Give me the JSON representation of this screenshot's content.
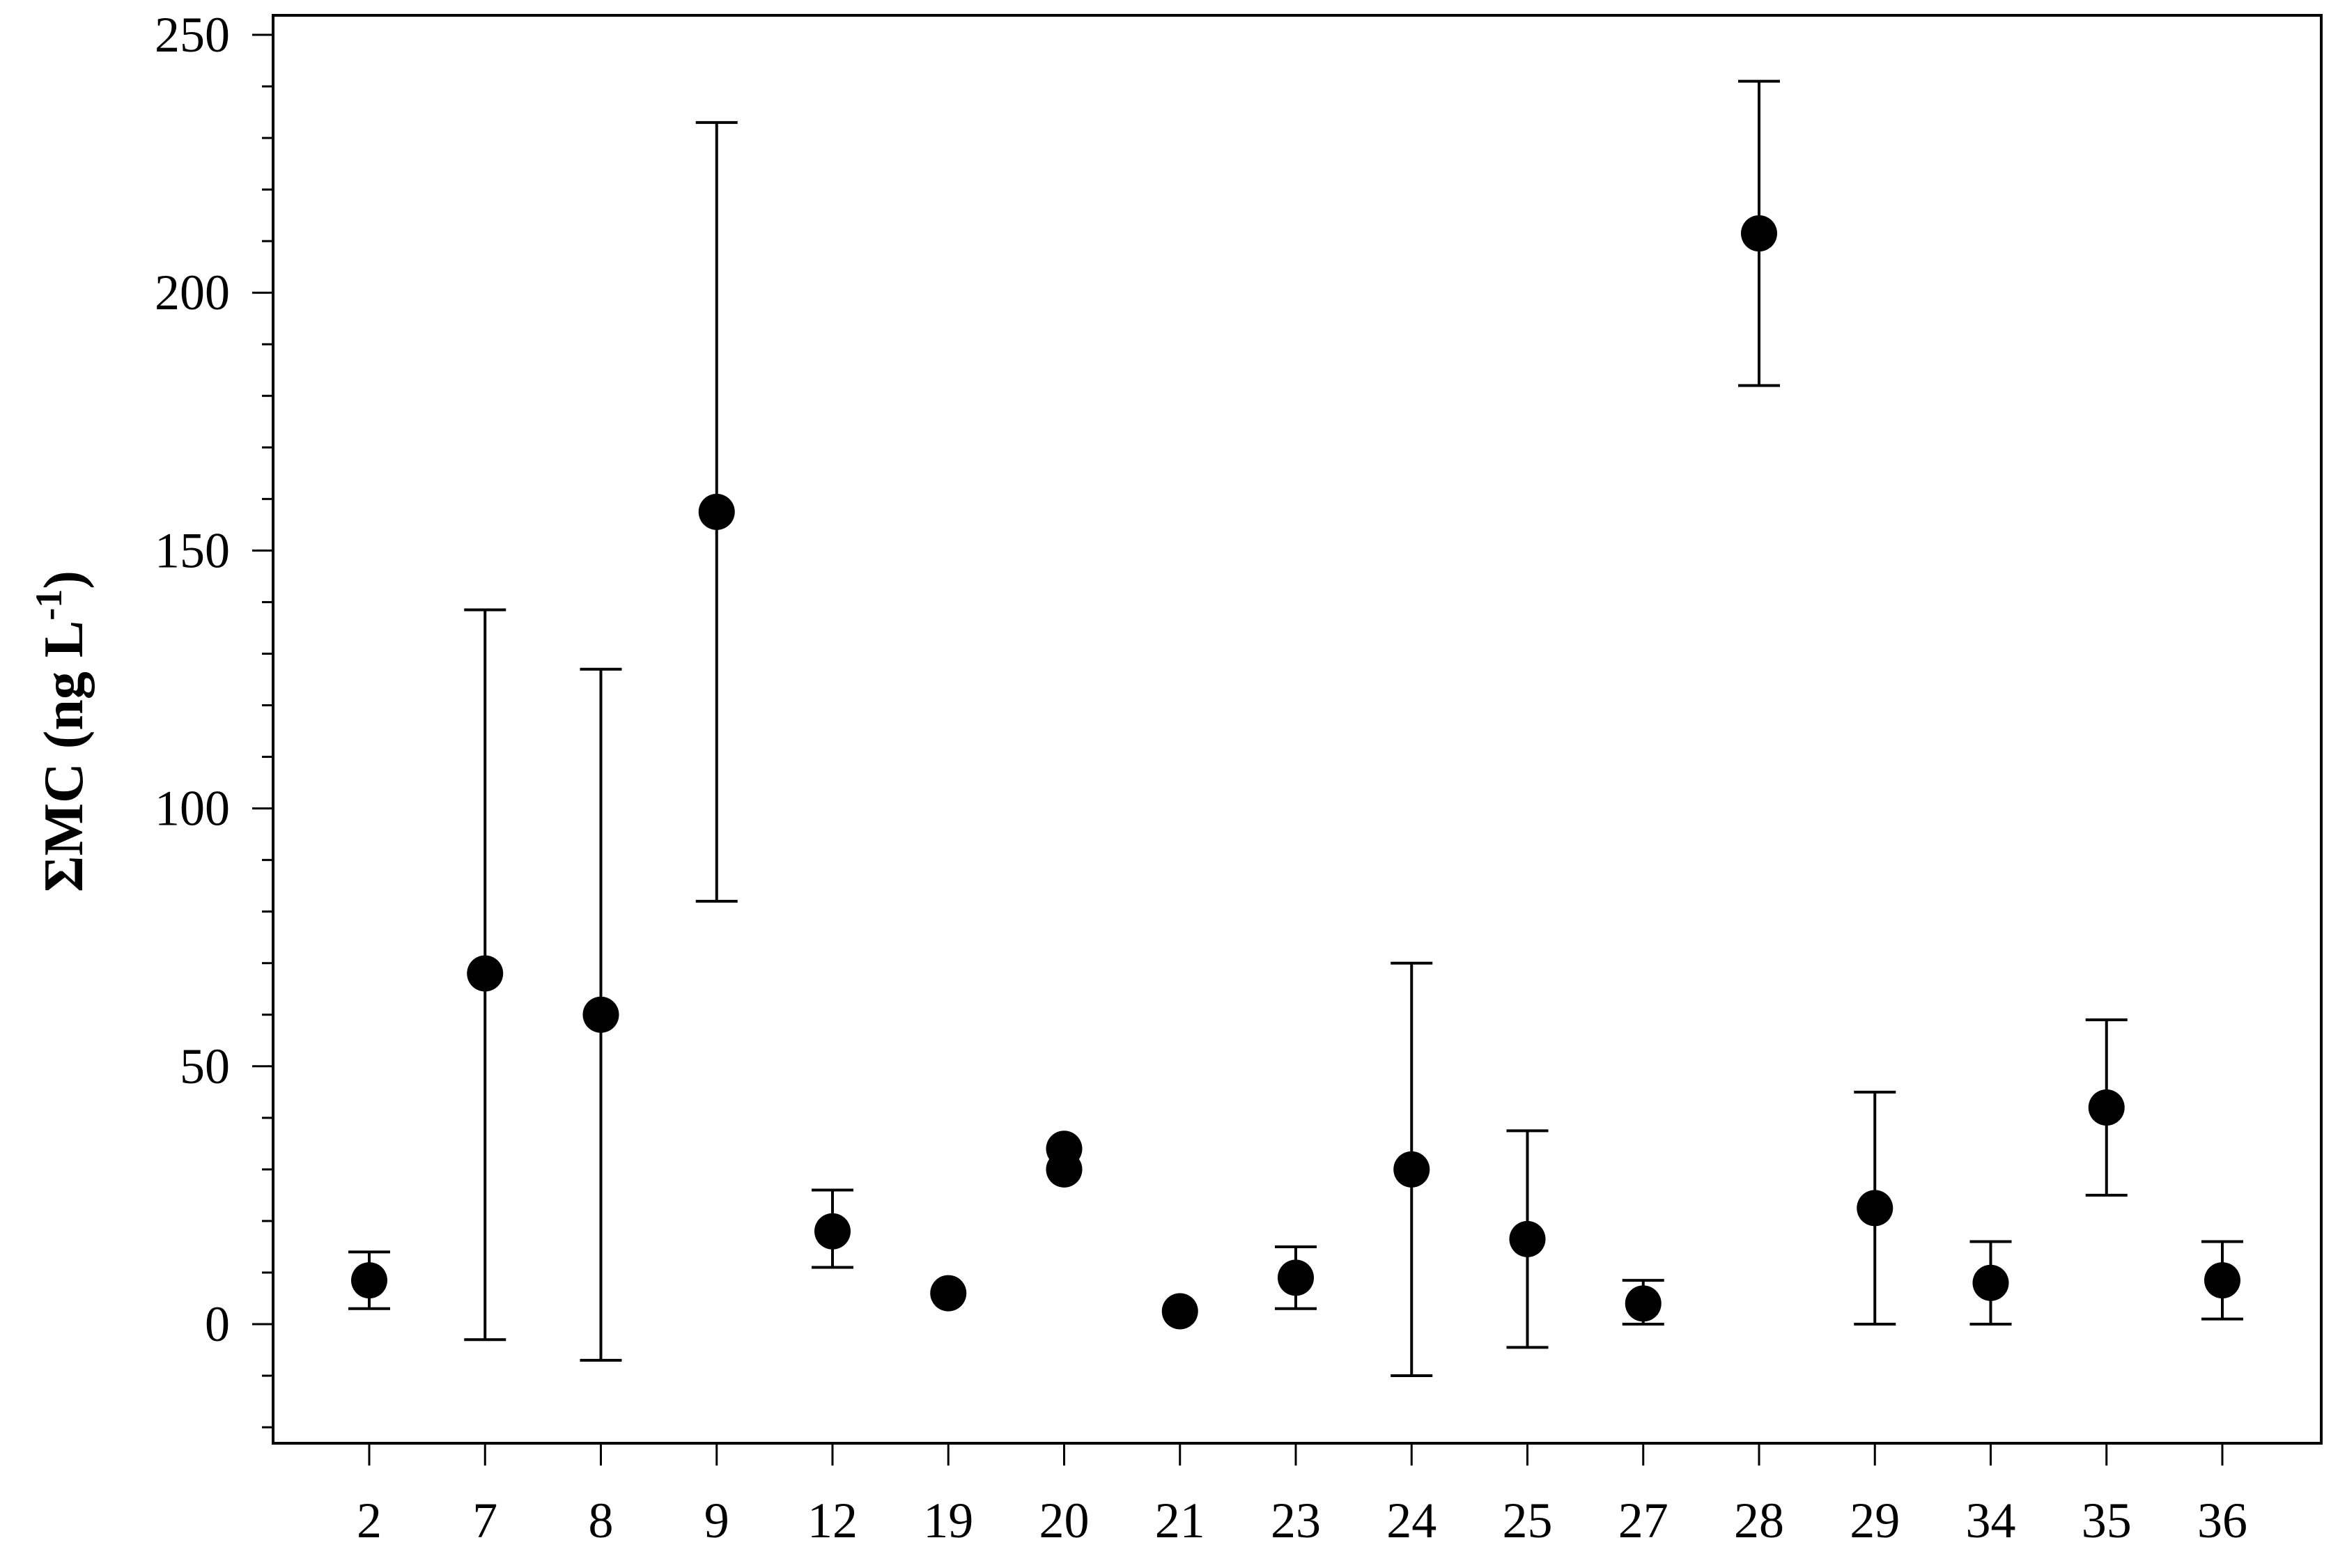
{
  "chart_data": {
    "type": "scatter",
    "title": "",
    "xlabel": "",
    "ylabel": "ΣMC (ng L",
    "ylabel_sup": "-1",
    "ylabel_close": ")",
    "ylim": [
      -20,
      250
    ],
    "yticks": [
      0,
      50,
      100,
      150,
      200,
      250
    ],
    "yminor_step": 10,
    "grid": false,
    "legend": "none",
    "marker_color": "#000000",
    "categories": [
      "2",
      "7",
      "8",
      "9",
      "12",
      "19",
      "20",
      "21",
      "23",
      "24",
      "25",
      "27",
      "28",
      "29",
      "34",
      "35",
      "36"
    ],
    "points": [
      {
        "x": "2",
        "y": 8.5,
        "err_low": 3,
        "err_high": 14
      },
      {
        "x": "7",
        "y": 68,
        "err_low": -3,
        "err_high": 138.5
      },
      {
        "x": "8",
        "y": 60,
        "err_low": -7,
        "err_high": 127
      },
      {
        "x": "9",
        "y": 157.5,
        "err_low": 82,
        "err_high": 233
      },
      {
        "x": "12",
        "y": 18,
        "err_low": 11,
        "err_high": 26
      },
      {
        "x": "19",
        "y": 6,
        "err_low": null,
        "err_high": null
      },
      {
        "x": "20",
        "y": 34,
        "err_low": null,
        "err_high": null
      },
      {
        "x": "20",
        "y": 30,
        "err_low": null,
        "err_high": null
      },
      {
        "x": "21",
        "y": 2.5,
        "err_low": null,
        "err_high": null
      },
      {
        "x": "23",
        "y": 9,
        "err_low": 3,
        "err_high": 15
      },
      {
        "x": "24",
        "y": 30,
        "err_low": -10,
        "err_high": 70
      },
      {
        "x": "25",
        "y": 16.5,
        "err_low": -4.5,
        "err_high": 37.5
      },
      {
        "x": "27",
        "y": 4,
        "err_low": 0,
        "err_high": 8.5
      },
      {
        "x": "28",
        "y": 211.5,
        "err_low": 182,
        "err_high": 241
      },
      {
        "x": "29",
        "y": 22.5,
        "err_low": 0,
        "err_high": 45
      },
      {
        "x": "34",
        "y": 8,
        "err_low": 0,
        "err_high": 16
      },
      {
        "x": "35",
        "y": 42,
        "err_low": 25,
        "err_high": 59
      },
      {
        "x": "36",
        "y": 8.5,
        "err_low": 1,
        "err_high": 16
      }
    ]
  }
}
